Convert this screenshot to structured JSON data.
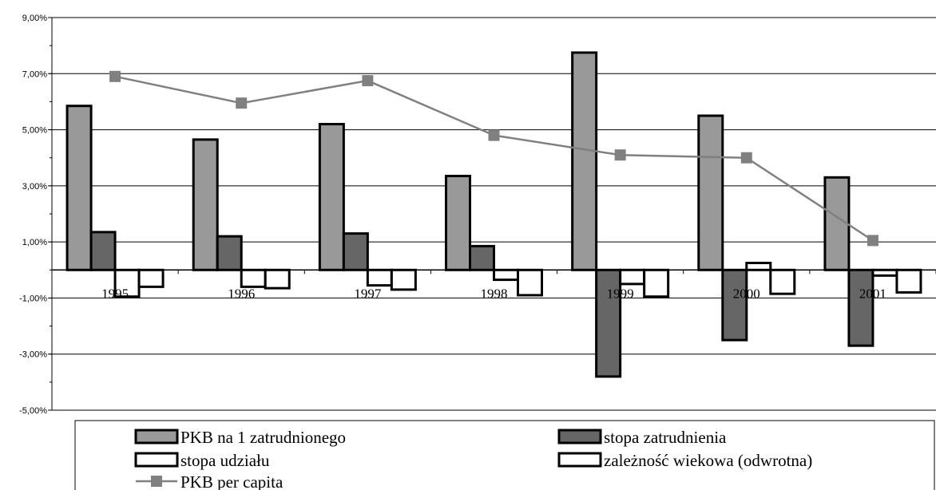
{
  "chart_data": {
    "type": "bar",
    "categories": [
      "1995",
      "1996",
      "1997",
      "1998",
      "1999",
      "2000",
      "2001"
    ],
    "series": [
      {
        "name": "PKB na 1 zatrudnionego",
        "kind": "bar",
        "color": "#999999",
        "values": [
          5.85,
          4.65,
          5.2,
          3.35,
          7.75,
          5.5,
          3.3
        ]
      },
      {
        "name": "stopa zatrudnienia",
        "kind": "bar",
        "color": "#666666",
        "values": [
          1.35,
          1.2,
          1.3,
          0.85,
          -3.8,
          -2.5,
          -2.7
        ]
      },
      {
        "name": "stopa udziału",
        "kind": "bar",
        "color": "#ffffff",
        "values": [
          -0.95,
          -0.6,
          -0.55,
          -0.35,
          -0.5,
          0.25,
          -0.2
        ]
      },
      {
        "name": "zależność wiekowa (odwrotna)",
        "kind": "bar",
        "color": "#ffffff",
        "values": [
          -0.6,
          -0.65,
          -0.7,
          -0.9,
          -0.95,
          -0.85,
          -0.8
        ]
      },
      {
        "name": "PKB per capita",
        "kind": "line",
        "color": "#808080",
        "values": [
          6.9,
          5.95,
          6.75,
          4.8,
          4.1,
          4.0,
          1.05
        ]
      }
    ],
    "y_ticks": [
      "9,00%",
      "7,00%",
      "5,00%",
      "3,00%",
      "1,00%",
      "-1,00%",
      "-3,00%",
      "-5,00%"
    ],
    "ylim": [
      -5,
      9
    ],
    "grid": true,
    "legend": "bottom"
  }
}
